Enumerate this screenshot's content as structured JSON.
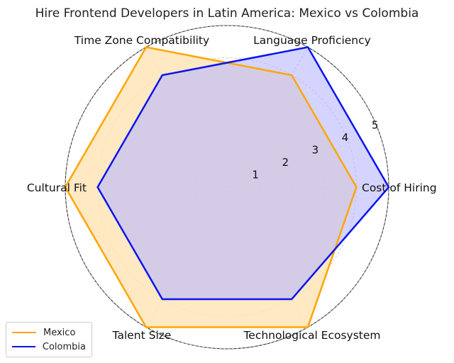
{
  "chart_data": {
    "type": "radar",
    "title": "Hire Frontend Developers in Latin America: Mexico vs Colombia",
    "axes": [
      "Cost of Hiring",
      "Language Proficiency",
      "Time Zone Compatibility",
      "Cultural Fit",
      "Talent Size",
      "Technological Ecosystem"
    ],
    "radial_ticks": [
      1,
      2,
      3,
      4,
      5
    ],
    "rlim": [
      0,
      5
    ],
    "grid": true,
    "legend_position": "bottom-left",
    "series": [
      {
        "name": "Mexico",
        "values": [
          4,
          4,
          5,
          5,
          5,
          5
        ],
        "color": "#FFA500",
        "fill": "#FFE5B8"
      },
      {
        "name": "Colombia",
        "values": [
          5,
          5,
          4,
          4,
          4,
          4
        ],
        "color": "#0A14F0",
        "fill": "#B8B8FF"
      }
    ]
  }
}
